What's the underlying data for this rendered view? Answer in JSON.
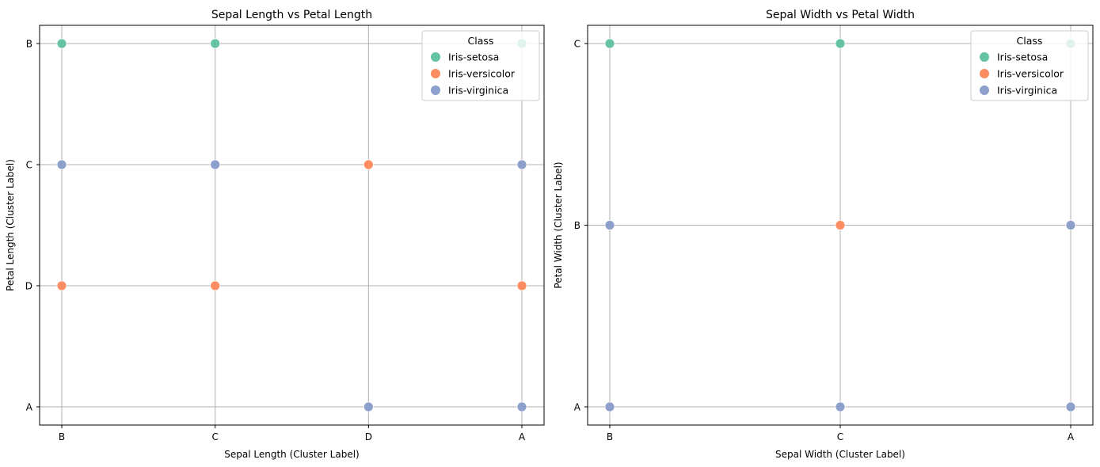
{
  "colors": {
    "Iris-setosa": "#66c2a5",
    "Iris-versicolor": "#fc8d62",
    "Iris-virginica": "#8da0cb",
    "grid": "#b0b0b0"
  },
  "chart_data": [
    {
      "type": "scatter",
      "title": "Sepal Length vs Petal Length",
      "xlabel": "Sepal Length (Cluster Label)",
      "ylabel": "Petal Length (Cluster Label)",
      "x_categories": [
        "B",
        "C",
        "D",
        "A"
      ],
      "y_categories": [
        "A",
        "D",
        "C",
        "B"
      ],
      "grid": true,
      "legend": {
        "title": "Class",
        "position": "top-right",
        "entries": [
          "Iris-setosa",
          "Iris-versicolor",
          "Iris-virginica"
        ]
      },
      "series": [
        {
          "name": "Iris-setosa",
          "points": [
            [
              "B",
              "B"
            ],
            [
              "C",
              "B"
            ],
            [
              "A",
              "B"
            ]
          ]
        },
        {
          "name": "Iris-versicolor",
          "points": [
            [
              "B",
              "D"
            ],
            [
              "C",
              "D"
            ],
            [
              "D",
              "C"
            ],
            [
              "A",
              "D"
            ]
          ]
        },
        {
          "name": "Iris-virginica",
          "points": [
            [
              "B",
              "C"
            ],
            [
              "C",
              "C"
            ],
            [
              "A",
              "C"
            ],
            [
              "D",
              "A"
            ],
            [
              "A",
              "A"
            ]
          ]
        }
      ]
    },
    {
      "type": "scatter",
      "title": "Sepal Width vs Petal Width",
      "xlabel": "Sepal Width (Cluster Label)",
      "ylabel": "Petal Width (Cluster Label)",
      "x_categories": [
        "B",
        "C",
        "A"
      ],
      "y_categories": [
        "A",
        "B",
        "C"
      ],
      "grid": true,
      "legend": {
        "title": "Class",
        "position": "top-right",
        "entries": [
          "Iris-setosa",
          "Iris-versicolor",
          "Iris-virginica"
        ]
      },
      "series": [
        {
          "name": "Iris-setosa",
          "points": [
            [
              "B",
              "C"
            ],
            [
              "C",
              "C"
            ],
            [
              "A",
              "C"
            ]
          ]
        },
        {
          "name": "Iris-versicolor",
          "points": [
            [
              "C",
              "B"
            ]
          ]
        },
        {
          "name": "Iris-virginica",
          "points": [
            [
              "B",
              "B"
            ],
            [
              "A",
              "B"
            ],
            [
              "B",
              "A"
            ],
            [
              "C",
              "A"
            ],
            [
              "A",
              "A"
            ]
          ]
        }
      ]
    }
  ]
}
